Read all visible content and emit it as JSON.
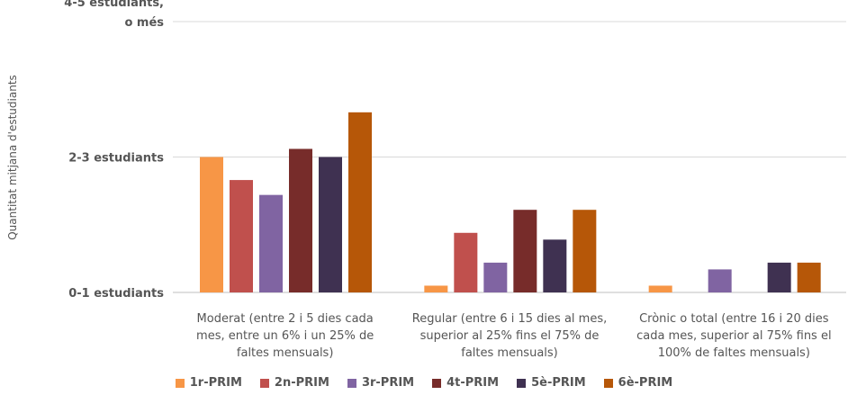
{
  "chart_data": {
    "type": "bar",
    "ylabel": "Quantitat mitjana d'estudiants",
    "yticks": [
      {
        "value": 0,
        "label": "0-1 estudiants"
      },
      {
        "value": 1,
        "label": "2-3 estudiants"
      },
      {
        "value": 2,
        "label": "4-5 estudiants,\no més"
      }
    ],
    "ylim": [
      0,
      2
    ],
    "grid": true,
    "legend_position": "bottom",
    "categories": [
      "Moderat (entre 2 i 5 dies cada\nmes, entre un 6% i un 25% de\nfaltes mensuals)",
      "Regular (entre 6 i 15 dies al mes,\nsuperior al 25% fins el 75% de\nfaltes mensuals)",
      "Crònic o total (entre 16 i 20 dies\ncada mes, superior al 75% fins el\n100% de faltes mensuals)"
    ],
    "series": [
      {
        "name": "1r-PRIM",
        "color": "#F79646",
        "values": [
          1.0,
          0.05,
          0.05
        ]
      },
      {
        "name": "2n-PRIM",
        "color": "#C0504D",
        "values": [
          0.83,
          0.44,
          0
        ]
      },
      {
        "name": "3r-PRIM",
        "color": "#8064A2",
        "values": [
          0.72,
          0.22,
          0.17
        ]
      },
      {
        "name": "4t-PRIM",
        "color": "#772C2A",
        "values": [
          1.06,
          0.61,
          0
        ]
      },
      {
        "name": "5è-PRIM",
        "color": "#3F3151",
        "values": [
          1.0,
          0.39,
          0.22
        ]
      },
      {
        "name": "6è-PRIM",
        "color": "#B65708",
        "values": [
          1.33,
          0.61,
          0.22
        ]
      }
    ]
  }
}
